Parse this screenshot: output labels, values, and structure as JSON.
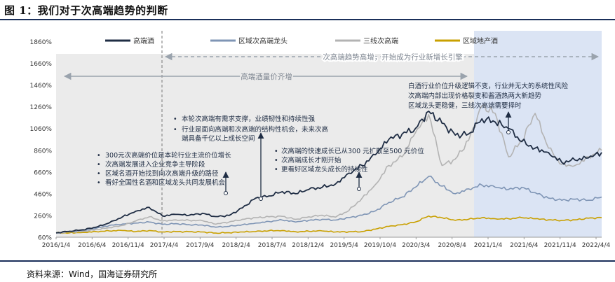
{
  "figure_title": "图 1：我们对于次高端趋势的判断",
  "source": "资料来源：Wind，国海证券研究所",
  "chart_data": {
    "type": "line",
    "x_ticks": [
      "2016/1/4",
      "2016/6/4",
      "2016/11/4",
      "2017/4/4",
      "2017/9/4",
      "2018/2/4",
      "2018/7/4",
      "2018/12/4",
      "2019/5/4",
      "2019/10/4",
      "2020/3/4",
      "2020/8/4",
      "2021/1/4",
      "2021/6/4",
      "2021/11/4",
      "2022/4/4"
    ],
    "y_ticks": [
      "60%",
      "260%",
      "460%",
      "660%",
      "860%",
      "1060%",
      "1260%",
      "1460%",
      "1660%",
      "1860%"
    ],
    "ylim": [
      60,
      1960
    ],
    "colors": {
      "s1": "#1f2d44",
      "s2": "#7f95b5",
      "s3": "#b3b3b3",
      "s4": "#c9a000",
      "shade_gray": "#ebebeb",
      "shade_blue": "#dbe4f4",
      "arrow_gray": "#9aa3ad"
    },
    "series": [
      {
        "name": "高端酒",
        "points": [
          [
            0,
            100
          ],
          [
            1,
            115
          ],
          [
            2,
            128
          ],
          [
            3,
            152
          ],
          [
            4,
            192
          ],
          [
            5,
            248
          ],
          [
            6,
            300
          ],
          [
            7,
            335
          ],
          [
            8,
            255
          ],
          [
            9,
            270
          ],
          [
            10,
            262
          ],
          [
            11,
            280
          ],
          [
            12,
            250
          ],
          [
            13,
            260
          ],
          [
            14,
            330
          ],
          [
            15,
            420
          ],
          [
            16,
            440
          ],
          [
            17,
            480
          ],
          [
            18,
            460
          ],
          [
            19,
            500
          ],
          [
            20,
            520
          ],
          [
            21,
            550
          ],
          [
            22,
            650
          ],
          [
            23,
            720
          ],
          [
            24,
            820
          ],
          [
            25,
            960
          ],
          [
            26,
            1010
          ],
          [
            27,
            1060
          ],
          [
            28,
            1220
          ],
          [
            29,
            1110
          ],
          [
            30,
            1000
          ],
          [
            31,
            1010
          ],
          [
            32,
            1150
          ],
          [
            33,
            1120
          ],
          [
            34,
            1060
          ],
          [
            35,
            940
          ],
          [
            36,
            880
          ],
          [
            37,
            840
          ],
          [
            38,
            750
          ],
          [
            39,
            770
          ],
          [
            40,
            790
          ],
          [
            41,
            840
          ]
        ]
      },
      {
        "name": "区域次高端龙头",
        "points": [
          [
            0,
            100
          ],
          [
            1,
            112
          ],
          [
            2,
            118
          ],
          [
            3,
            142
          ],
          [
            4,
            168
          ],
          [
            5,
            182
          ],
          [
            6,
            190
          ],
          [
            7,
            200
          ],
          [
            8,
            178
          ],
          [
            9,
            185
          ],
          [
            10,
            175
          ],
          [
            11,
            172
          ],
          [
            12,
            152
          ],
          [
            13,
            160
          ],
          [
            14,
            175
          ],
          [
            15,
            190
          ],
          [
            16,
            205
          ],
          [
            17,
            218
          ],
          [
            18,
            200
          ],
          [
            19,
            215
          ],
          [
            20,
            225
          ],
          [
            21,
            218
          ],
          [
            22,
            240
          ],
          [
            23,
            262
          ],
          [
            24,
            302
          ],
          [
            25,
            380
          ],
          [
            26,
            430
          ],
          [
            27,
            520
          ],
          [
            28,
            620
          ],
          [
            29,
            530
          ],
          [
            30,
            460
          ],
          [
            31,
            505
          ],
          [
            32,
            540
          ],
          [
            33,
            520
          ],
          [
            34,
            500
          ],
          [
            35,
            520
          ],
          [
            36,
            470
          ],
          [
            37,
            420
          ],
          [
            38,
            400
          ],
          [
            39,
            410
          ],
          [
            40,
            400
          ],
          [
            41,
            430
          ]
        ]
      },
      {
        "name": "三线次高端",
        "points": [
          [
            0,
            100
          ],
          [
            1,
            108
          ],
          [
            2,
            112
          ],
          [
            3,
            130
          ],
          [
            4,
            148
          ],
          [
            5,
            168
          ],
          [
            6,
            210
          ],
          [
            7,
            248
          ],
          [
            8,
            210
          ],
          [
            9,
            220
          ],
          [
            10,
            215
          ],
          [
            11,
            212
          ],
          [
            12,
            180
          ],
          [
            13,
            200
          ],
          [
            14,
            225
          ],
          [
            15,
            240
          ],
          [
            16,
            248
          ],
          [
            17,
            252
          ],
          [
            18,
            225
          ],
          [
            19,
            248
          ],
          [
            20,
            262
          ],
          [
            21,
            245
          ],
          [
            22,
            305
          ],
          [
            23,
            420
          ],
          [
            24,
            545
          ],
          [
            25,
            720
          ],
          [
            26,
            800
          ],
          [
            27,
            1020
          ],
          [
            28,
            1190
          ],
          [
            29,
            720
          ],
          [
            30,
            780
          ],
          [
            31,
            950
          ],
          [
            32,
            1270
          ],
          [
            33,
            1200
          ],
          [
            34,
            800
          ],
          [
            35,
            950
          ],
          [
            36,
            1200
          ],
          [
            37,
            880
          ],
          [
            38,
            730
          ],
          [
            39,
            720
          ],
          [
            40,
            800
          ],
          [
            41,
            860
          ]
        ]
      },
      {
        "name": "区域地产酒",
        "points": [
          [
            0,
            100
          ],
          [
            1,
            100
          ],
          [
            2,
            104
          ],
          [
            3,
            112
          ],
          [
            4,
            118
          ],
          [
            5,
            122
          ],
          [
            6,
            112
          ],
          [
            7,
            122
          ],
          [
            8,
            108
          ],
          [
            9,
            112
          ],
          [
            10,
            110
          ],
          [
            11,
            108
          ],
          [
            12,
            98
          ],
          [
            13,
            102
          ],
          [
            14,
            108
          ],
          [
            15,
            112
          ],
          [
            16,
            120
          ],
          [
            17,
            122
          ],
          [
            18,
            110
          ],
          [
            19,
            115
          ],
          [
            20,
            118
          ],
          [
            21,
            108
          ],
          [
            22,
            110
          ],
          [
            23,
            112
          ],
          [
            24,
            135
          ],
          [
            25,
            160
          ],
          [
            26,
            175
          ],
          [
            27,
            200
          ],
          [
            28,
            255
          ],
          [
            29,
            240
          ],
          [
            30,
            215
          ],
          [
            31,
            225
          ],
          [
            32,
            240
          ],
          [
            33,
            230
          ],
          [
            34,
            230
          ],
          [
            35,
            240
          ],
          [
            36,
            230
          ],
          [
            37,
            220
          ],
          [
            38,
            215
          ],
          [
            39,
            220
          ],
          [
            40,
            235
          ],
          [
            41,
            240
          ]
        ]
      }
    ],
    "period_labels": {
      "left": "高端酒量价齐增",
      "right": "次高端趋势高增，开始成为行业新增长引擎"
    },
    "annotations": [
      {
        "bullets": [
          "300元次高端价位是本轮行业主流价位增长",
          "次高端发展进入企业竞争主导阶段",
          "区域名酒开始找到向次高端升级的路径",
          "看好全国性名酒和区域龙头共同发展机会"
        ]
      },
      {
        "bullets": [
          "本轮次高端有需求支撑，业绩韧性和持续性强",
          "行业是面向高端和次高端的结构性机会，未来次高",
          "端具备千亿以上成长空间"
        ]
      },
      {
        "bullets": [
          "次高端的快速成长已从300 元扩散至500 元价位",
          "次高端成长才刚开始",
          "更看好区域龙头成长的持续性"
        ]
      },
      {
        "lines": [
          "白酒行业价位升级逻辑不变，行业并无大的系统性风险",
          "次高端内部出现价格裂变和酱酒热两大新趋势",
          "区域龙头更稳健，三线次高端需要择时"
        ]
      }
    ]
  }
}
